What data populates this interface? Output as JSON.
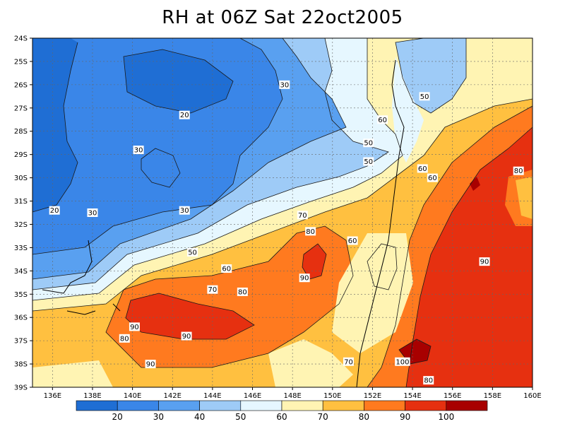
{
  "title": "RH at 06Z Sat 22oct2005",
  "chart_data": {
    "type": "contour-map",
    "variable": "RH",
    "lon_range": [
      135,
      160
    ],
    "lat_range": [
      -39,
      -24
    ],
    "x_ticks": [
      "136E",
      "138E",
      "140E",
      "142E",
      "144E",
      "146E",
      "148E",
      "150E",
      "152E",
      "154E",
      "156E",
      "158E",
      "160E"
    ],
    "y_ticks": [
      "24S",
      "25S",
      "26S",
      "27S",
      "28S",
      "29S",
      "30S",
      "31S",
      "32S",
      "33S",
      "34S",
      "35S",
      "36S",
      "37S",
      "38S",
      "39S"
    ],
    "contour_levels": [
      20,
      30,
      40,
      50,
      60,
      70,
      80,
      90,
      100
    ],
    "colorbar": {
      "labels": [
        "20",
        "30",
        "40",
        "50",
        "60",
        "70",
        "80",
        "90",
        "100"
      ],
      "colors": [
        "#1f6ed4",
        "#3a86e8",
        "#59a0f0",
        "#9ecbf7",
        "#e6f7ff",
        "#fff4b3",
        "#ffc040",
        "#ff7a1f",
        "#e63010",
        "#a80000"
      ]
    },
    "contour_labels": [
      {
        "text": "20",
        "lon": 136.1,
        "lat": -31.4
      },
      {
        "text": "20",
        "lon": 142.6,
        "lat": -27.3
      },
      {
        "text": "30",
        "lon": 140.3,
        "lat": -28.8
      },
      {
        "text": "30",
        "lon": 138.0,
        "lat": -31.5
      },
      {
        "text": "30",
        "lon": 142.6,
        "lat": -31.4
      },
      {
        "text": "30",
        "lon": 147.6,
        "lat": -26.0
      },
      {
        "text": "50",
        "lon": 151.8,
        "lat": -28.5
      },
      {
        "text": "50",
        "lon": 151.8,
        "lat": -29.3
      },
      {
        "text": "50",
        "lon": 154.6,
        "lat": -26.5
      },
      {
        "text": "50",
        "lon": 143.0,
        "lat": -33.2
      },
      {
        "text": "60",
        "lon": 152.5,
        "lat": -27.5
      },
      {
        "text": "60",
        "lon": 154.5,
        "lat": -29.6
      },
      {
        "text": "60",
        "lon": 155.0,
        "lat": -30.0
      },
      {
        "text": "60",
        "lon": 151.0,
        "lat": -32.7
      },
      {
        "text": "60",
        "lon": 144.7,
        "lat": -33.9
      },
      {
        "text": "70",
        "lon": 148.5,
        "lat": -31.6
      },
      {
        "text": "70",
        "lon": 144.0,
        "lat": -34.8
      },
      {
        "text": "70",
        "lon": 150.8,
        "lat": -37.9
      },
      {
        "text": "80",
        "lon": 148.9,
        "lat": -32.3
      },
      {
        "text": "80",
        "lon": 145.5,
        "lat": -34.9
      },
      {
        "text": "80",
        "lon": 139.6,
        "lat": -36.9
      },
      {
        "text": "80",
        "lon": 154.8,
        "lat": -38.7
      },
      {
        "text": "80",
        "lon": 159.3,
        "lat": -29.7
      },
      {
        "text": "90",
        "lon": 140.1,
        "lat": -36.4
      },
      {
        "text": "90",
        "lon": 142.7,
        "lat": -36.8
      },
      {
        "text": "90",
        "lon": 148.6,
        "lat": -34.3
      },
      {
        "text": "90",
        "lon": 140.9,
        "lat": -38.0
      },
      {
        "text": "90",
        "lon": 157.6,
        "lat": -33.6
      },
      {
        "text": "100",
        "lon": 153.5,
        "lat": -37.9
      }
    ],
    "grid": true
  }
}
